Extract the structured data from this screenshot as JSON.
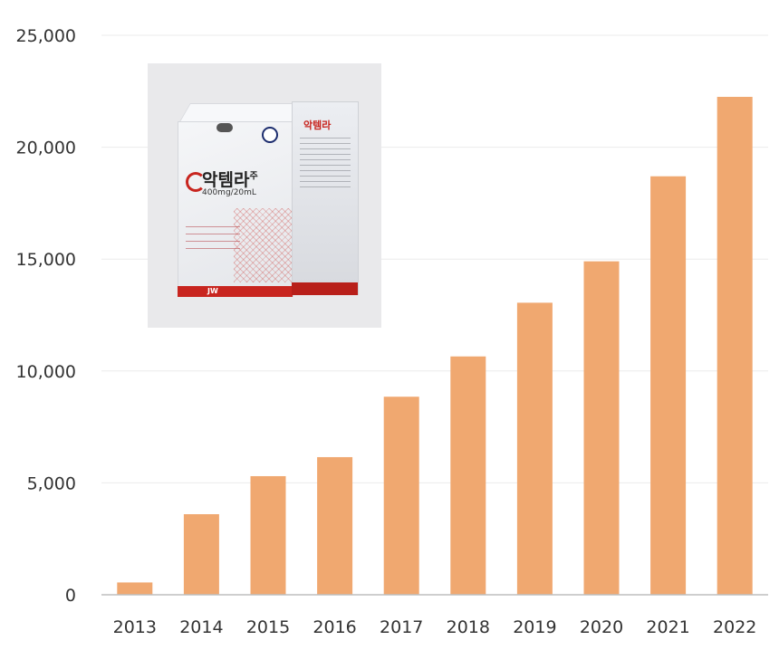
{
  "chart_data": {
    "type": "bar",
    "title": "",
    "xlabel": "",
    "ylabel": "",
    "categories": [
      "2013",
      "2014",
      "2015",
      "2016",
      "2017",
      "2018",
      "2019",
      "2020",
      "2021",
      "2022"
    ],
    "values": [
      550,
      3600,
      5300,
      6150,
      8850,
      10650,
      13050,
      14900,
      18700,
      22250
    ],
    "ylim": [
      0,
      25000
    ],
    "yticks": [
      0,
      5000,
      10000,
      15000,
      20000,
      25000
    ],
    "ytick_labels": [
      "0",
      "5,000",
      "10,000",
      "15,000",
      "20,000",
      "25,000"
    ],
    "grid": true,
    "bar_color": "#f0a870",
    "grid_color": "#ebebeb",
    "axis_color": "#bdbdbd"
  },
  "product_photo": {
    "brand_name": "악템라",
    "brand_suffix": "주",
    "dose_text": "400mg/20mL",
    "company_mark": "JW"
  }
}
